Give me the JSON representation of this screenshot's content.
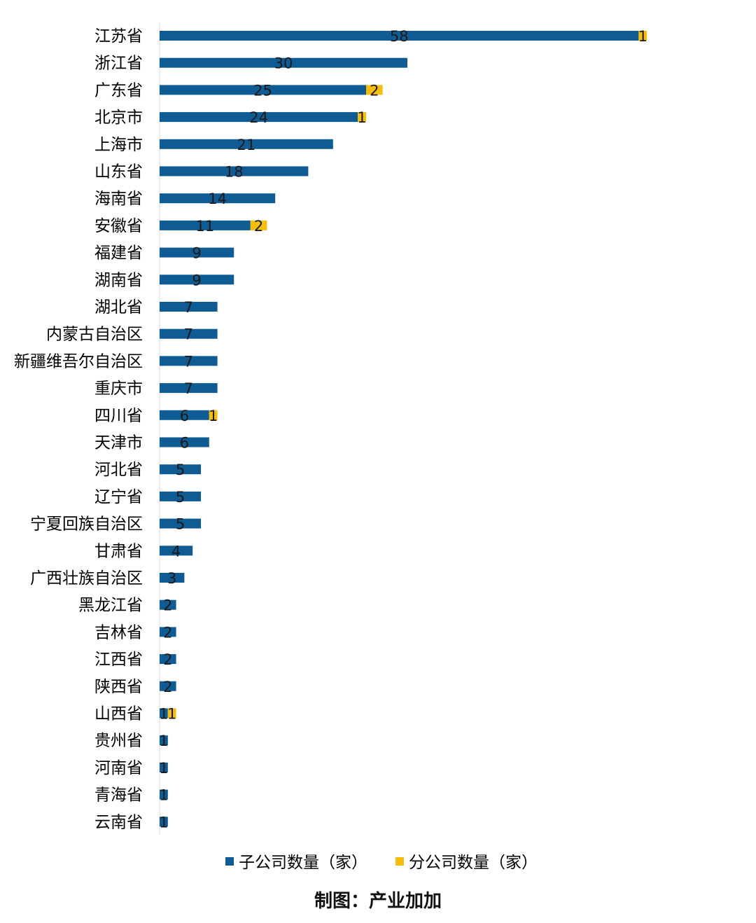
{
  "chart_data": {
    "type": "bar",
    "orientation": "horizontal",
    "stacked": true,
    "categories": [
      "江苏省",
      "浙江省",
      "广东省",
      "北京市",
      "上海市",
      "山东省",
      "海南省",
      "安徽省",
      "福建省",
      "湖南省",
      "湖北省",
      "内蒙古自治区",
      "新疆维吾尔自治区",
      "重庆市",
      "四川省",
      "天津市",
      "河北省",
      "辽宁省",
      "宁夏回族自治区",
      "甘肃省",
      "广西壮族自治区",
      "黑龙江省",
      "吉林省",
      "江西省",
      "陕西省",
      "山西省",
      "贵州省",
      "河南省",
      "青海省",
      "云南省"
    ],
    "series": [
      {
        "name": "子公司数量（家）",
        "color": "#0f5c94",
        "values": [
          58,
          30,
          25,
          24,
          21,
          18,
          14,
          11,
          9,
          9,
          7,
          7,
          7,
          7,
          6,
          6,
          5,
          5,
          5,
          4,
          3,
          2,
          2,
          2,
          2,
          1,
          1,
          1,
          1,
          1
        ]
      },
      {
        "name": "分公司数量（家）",
        "color": "#f5bd0c",
        "values": [
          1,
          0,
          2,
          1,
          0,
          0,
          0,
          2,
          0,
          0,
          0,
          0,
          0,
          0,
          1,
          0,
          0,
          0,
          0,
          0,
          0,
          0,
          0,
          0,
          0,
          1,
          0,
          0,
          0,
          0
        ]
      }
    ],
    "xlim": [
      0,
      60
    ],
    "grid": false,
    "legend": "bottom",
    "title": "",
    "xlabel": "",
    "ylabel": ""
  },
  "caption": "制图：产业加加"
}
